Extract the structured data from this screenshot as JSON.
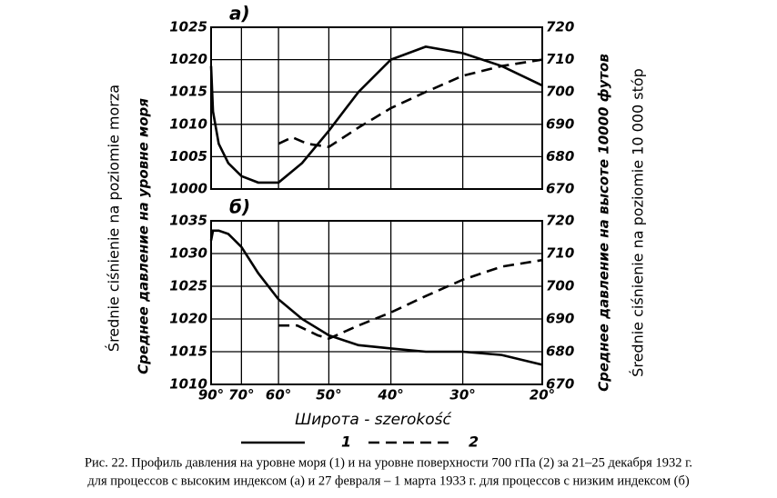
{
  "figure": {
    "y_label_pl": "Średnie ciśnienie na poziomie morza",
    "y_label_ru": "Среднее давление на уровне моря",
    "y2_label_ru": "Среднее давление на высоте 10000 футов",
    "y2_label_pl": "Średnie ciśnienie na poziomie 10 000 stóp",
    "x_label": "Широта - szerokość"
  },
  "chart_data": [
    {
      "type": "line",
      "title": "а)",
      "xscale": "sine",
      "xlim": [
        90,
        20
      ],
      "ylim": [
        1000,
        1025
      ],
      "yticks": [
        1025,
        1020,
        1015,
        1010,
        1005,
        1000
      ],
      "y2lim": [
        670,
        720
      ],
      "y2ticks": [
        720,
        710,
        700,
        690,
        680,
        670
      ],
      "grid": true,
      "series": [
        {
          "name": "1",
          "color": "#000",
          "dash": false,
          "x": [
            90,
            85,
            80,
            75,
            70,
            65,
            60,
            55,
            50,
            45,
            40,
            35,
            30,
            25,
            20
          ],
          "values": [
            1019,
            1012,
            1007,
            1004,
            1002,
            1001,
            1001,
            1004,
            1009,
            1015,
            1020,
            1022,
            1021,
            1019,
            1016
          ]
        },
        {
          "name": "2",
          "color": "#000",
          "dash": true,
          "axis": "y2",
          "x": [
            60,
            57,
            54,
            50,
            45,
            40,
            35,
            30,
            25,
            20
          ],
          "values": [
            684,
            686,
            684,
            683,
            689,
            695,
            700,
            705,
            708,
            710
          ]
        }
      ]
    },
    {
      "type": "line",
      "title": "б)",
      "xscale": "sine",
      "xlim": [
        90,
        20
      ],
      "ylim": [
        1010,
        1035
      ],
      "yticks": [
        1035,
        1030,
        1025,
        1020,
        1015,
        1010
      ],
      "y2lim": [
        670,
        720
      ],
      "y2ticks": [
        720,
        710,
        700,
        690,
        680,
        670
      ],
      "grid": true,
      "xticks": [
        {
          "value": 90,
          "label": "90°"
        },
        {
          "value": 70,
          "label": "70°"
        },
        {
          "value": 60,
          "label": "60°"
        },
        {
          "value": 50,
          "label": "50°"
        },
        {
          "value": 40,
          "label": "40°"
        },
        {
          "value": 30,
          "label": "30°"
        },
        {
          "value": 20,
          "label": "20°"
        }
      ],
      "series": [
        {
          "color": "#000",
          "dash": false,
          "x": [
            90,
            85,
            80,
            75,
            70,
            65,
            60,
            55,
            50,
            45,
            40,
            35,
            30,
            25,
            20
          ],
          "values": [
            1032,
            1033.5,
            1033.5,
            1033,
            1031,
            1027,
            1023,
            1020,
            1017.5,
            1016,
            1015.5,
            1015,
            1015,
            1014.5,
            1013
          ]
        },
        {
          "color": "#000",
          "dash": true,
          "axis": "y2",
          "x": [
            60,
            56,
            52,
            50,
            45,
            40,
            35,
            30,
            25,
            20
          ],
          "values": [
            688,
            688,
            685,
            684,
            688,
            692,
            697,
            702,
            706,
            708
          ]
        }
      ]
    }
  ],
  "caption": [
    "Рис. 22. Профиль давления на уровне моря (1) и на уровне поверхности 700 гПа (2)  за 21–25 декабря 1932 г.",
    "для процессов с высоким индексом (а) и 27 февраля – 1 марта 1933 г. для процессов с низким индексом (б)"
  ]
}
